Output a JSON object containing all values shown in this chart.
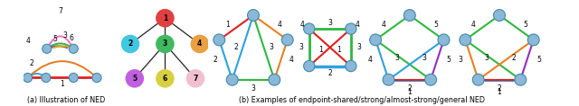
{
  "node_color": "#8ab8d8",
  "node_ec": "#4488aa",
  "caption_a": "(a) Illustration of NED",
  "caption_b": "(b) Examples of endpoint-shared/strong/almost-strong/general NED",
  "fig_bg": "#ffffff",
  "tree_colors": {
    "1": "#e04040",
    "2": "#40c8e0",
    "3": "#40b860",
    "4": "#e8a040",
    "5": "#c060e0",
    "6": "#d8d040",
    "7": "#f0c0d0"
  }
}
